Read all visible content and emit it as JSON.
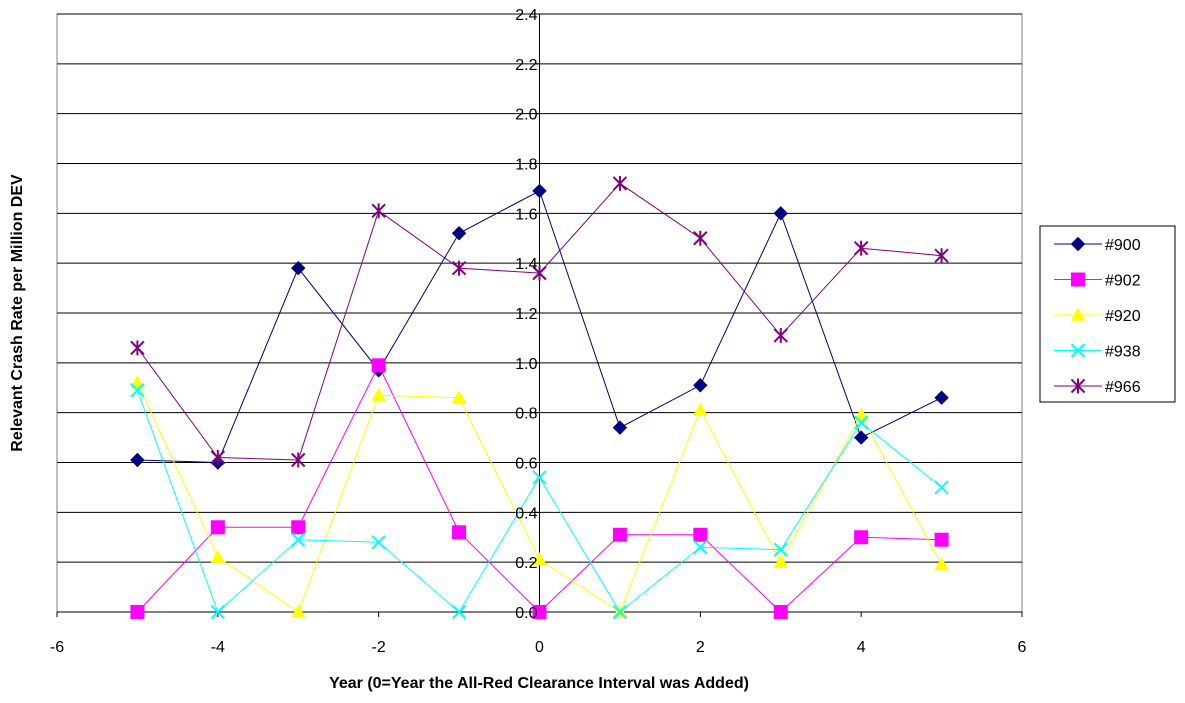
{
  "chart_data": {
    "type": "line",
    "title": "",
    "xlabel": "Year (0=Year the All-Red Clearance Interval was Added)",
    "ylabel": "Relevant Crash Rate per Million DEV",
    "xlim": [
      -6,
      6
    ],
    "ylim": [
      0,
      2.4
    ],
    "x_ticks": [
      "-6",
      "-4",
      "-2",
      "0",
      "2",
      "4",
      "6"
    ],
    "y_ticks": [
      "0.0",
      "0.2",
      "0.4",
      "0.6",
      "0.8",
      "1.0",
      "1.2",
      "1.4",
      "1.6",
      "1.8",
      "2.0",
      "2.2",
      "2.4"
    ],
    "grid": "horizontal",
    "legend_position": "right",
    "x": [
      -5,
      -4,
      -3,
      -2,
      -1,
      0,
      1,
      2,
      3,
      4,
      5
    ],
    "series": [
      {
        "name": "#900",
        "color": "#000080",
        "marker": "diamond",
        "values": [
          0.61,
          0.6,
          1.38,
          0.97,
          1.52,
          1.69,
          0.74,
          0.91,
          1.6,
          0.7,
          0.86
        ]
      },
      {
        "name": "#902",
        "color": "#FF00FF",
        "marker": "square",
        "values": [
          0.0,
          0.34,
          0.34,
          0.99,
          0.32,
          0.0,
          0.31,
          0.31,
          0.0,
          0.3,
          0.29
        ]
      },
      {
        "name": "#920",
        "color": "#FFFF00",
        "marker": "triangle",
        "values": [
          0.92,
          0.22,
          0.0,
          0.87,
          0.86,
          0.21,
          0.0,
          0.81,
          0.2,
          0.79,
          0.19
        ]
      },
      {
        "name": "#938",
        "color": "#00FFFF",
        "marker": "x",
        "values": [
          0.89,
          0.0,
          0.29,
          0.28,
          0.0,
          0.54,
          0.0,
          0.26,
          0.25,
          0.76,
          0.5
        ]
      },
      {
        "name": "#966",
        "color": "#800080",
        "marker": "star",
        "values": [
          1.06,
          0.62,
          0.61,
          1.61,
          1.38,
          1.36,
          1.72,
          1.5,
          1.11,
          1.46,
          1.43
        ]
      }
    ]
  }
}
